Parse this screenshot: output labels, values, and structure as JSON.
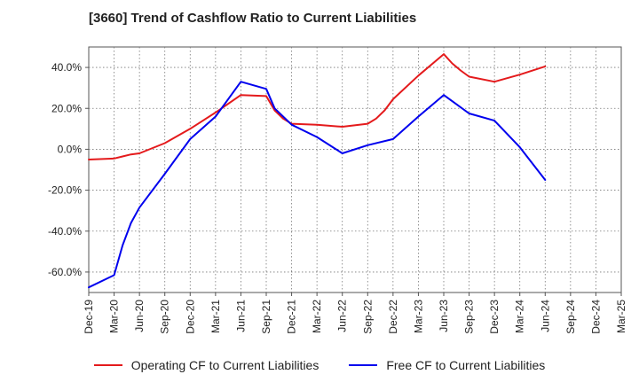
{
  "chart_data": {
    "type": "line",
    "title": "[3660]  Trend of Cashflow Ratio to Current Liabilities",
    "xlabel": "",
    "ylabel": "",
    "x_ticks": [
      "Dec-19",
      "Mar-20",
      "Jun-20",
      "Sep-20",
      "Dec-20",
      "Mar-21",
      "Jun-21",
      "Sep-21",
      "Dec-21",
      "Mar-22",
      "Jun-22",
      "Sep-22",
      "Dec-22",
      "Mar-23",
      "Jun-23",
      "Sep-23",
      "Dec-23",
      "Mar-24",
      "Jun-24",
      "Sep-24",
      "Dec-24",
      "Mar-25"
    ],
    "y_ticks": [
      "-60.0%",
      "-40.0%",
      "-20.0%",
      "0.0%",
      "20.0%",
      "40.0%"
    ],
    "y_tick_values": [
      -60,
      -40,
      -20,
      0,
      20,
      40
    ],
    "ylim": [
      -70,
      50
    ],
    "grid": true,
    "legend_position": "bottom",
    "series": [
      {
        "name": "Operating CF to Current Liabilities",
        "color": "#e41a1c",
        "points": [
          [
            "Dec-19",
            -5.0
          ],
          [
            "Mar-20",
            -4.5
          ],
          [
            "Apr-20",
            -3.5
          ],
          [
            "May-20",
            -2.5
          ],
          [
            "Jun-20",
            -2.0
          ],
          [
            "Sep-20",
            3.0
          ],
          [
            "Dec-20",
            10.0
          ],
          [
            "Mar-21",
            18.0
          ],
          [
            "Jun-21",
            26.5
          ],
          [
            "Sep-21",
            26.0
          ],
          [
            "Oct-21",
            19.0
          ],
          [
            "Nov-21",
            15.0
          ],
          [
            "Dec-21",
            12.5
          ],
          [
            "Mar-22",
            12.0
          ],
          [
            "Jun-22",
            11.0
          ],
          [
            "Sep-22",
            12.5
          ],
          [
            "Oct-22",
            15.0
          ],
          [
            "Nov-22",
            19.0
          ],
          [
            "Dec-22",
            24.5
          ],
          [
            "Mar-23",
            36.0
          ],
          [
            "Jun-23",
            46.5
          ],
          [
            "Jul-23",
            42.0
          ],
          [
            "Aug-23",
            38.5
          ],
          [
            "Sep-23",
            35.5
          ],
          [
            "Dec-23",
            33.0
          ],
          [
            "Mar-24",
            36.5
          ],
          [
            "Jun-24",
            40.5
          ]
        ]
      },
      {
        "name": "Free CF to Current Liabilities",
        "color": "#0000ee",
        "points": [
          [
            "Dec-19",
            -67.5
          ],
          [
            "Mar-20",
            -61.5
          ],
          [
            "Apr-20",
            -47.0
          ],
          [
            "May-20",
            -36.0
          ],
          [
            "Jun-20",
            -28.5
          ],
          [
            "Sep-20",
            -12.0
          ],
          [
            "Dec-20",
            5.0
          ],
          [
            "Mar-21",
            16.0
          ],
          [
            "Jun-21",
            33.0
          ],
          [
            "Sep-21",
            29.5
          ],
          [
            "Oct-21",
            20.0
          ],
          [
            "Dec-21",
            12.0
          ],
          [
            "Mar-22",
            6.0
          ],
          [
            "Jun-22",
            -2.0
          ],
          [
            "Sep-22",
            2.0
          ],
          [
            "Dec-22",
            5.0
          ],
          [
            "Mar-23",
            16.0
          ],
          [
            "Jun-23",
            26.5
          ],
          [
            "Sep-23",
            17.5
          ],
          [
            "Dec-23",
            14.0
          ],
          [
            "Mar-24",
            1.0
          ],
          [
            "Jun-24",
            -15.0
          ]
        ]
      }
    ]
  }
}
